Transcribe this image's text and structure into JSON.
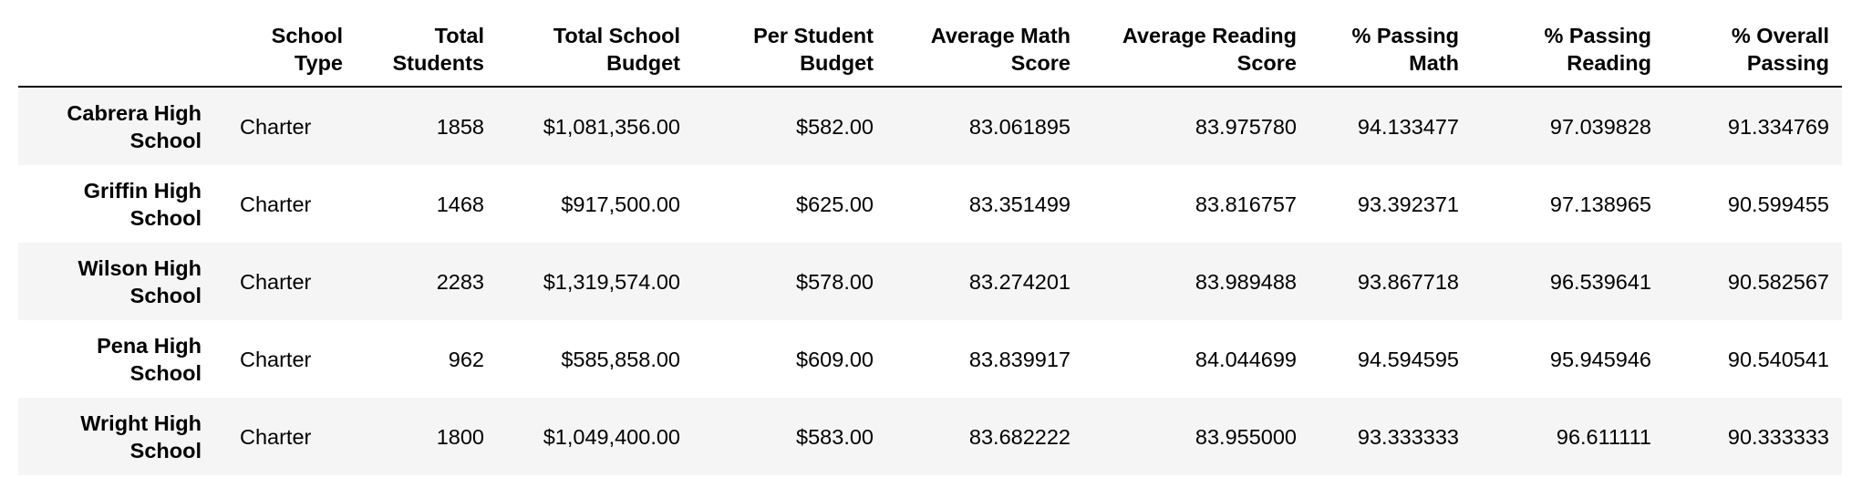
{
  "columns": [
    "",
    "School Type",
    "Total Students",
    "Total School Budget",
    "Per Student Budget",
    "Average Math Score",
    "Average Reading Score",
    "% Passing Math",
    "% Passing Reading",
    "% Overall Passing"
  ],
  "header_lines": [
    [
      "",
      ""
    ],
    [
      "School",
      "Type"
    ],
    [
      "Total",
      "Students"
    ],
    [
      "Total School",
      "Budget"
    ],
    [
      "Per Student",
      "Budget"
    ],
    [
      "Average Math",
      "Score"
    ],
    [
      "Average Reading",
      "Score"
    ],
    [
      "% Passing",
      "Math"
    ],
    [
      "% Passing",
      "Reading"
    ],
    [
      "% Overall",
      "Passing"
    ]
  ],
  "rows": [
    {
      "name_lines": [
        "Cabrera High",
        "School"
      ],
      "school_type": "Charter",
      "total_students": "1858",
      "total_budget": "$1,081,356.00",
      "per_student_budget": "$582.00",
      "avg_math": "83.061895",
      "avg_reading": "83.975780",
      "pct_math": "94.133477",
      "pct_reading": "97.039828",
      "pct_overall": "91.334769"
    },
    {
      "name_lines": [
        "Griffin High",
        "School"
      ],
      "school_type": "Charter",
      "total_students": "1468",
      "total_budget": "$917,500.00",
      "per_student_budget": "$625.00",
      "avg_math": "83.351499",
      "avg_reading": "83.816757",
      "pct_math": "93.392371",
      "pct_reading": "97.138965",
      "pct_overall": "90.599455"
    },
    {
      "name_lines": [
        "Wilson High",
        "School"
      ],
      "school_type": "Charter",
      "total_students": "2283",
      "total_budget": "$1,319,574.00",
      "per_student_budget": "$578.00",
      "avg_math": "83.274201",
      "avg_reading": "83.989488",
      "pct_math": "93.867718",
      "pct_reading": "96.539641",
      "pct_overall": "90.582567"
    },
    {
      "name_lines": [
        "Pena High",
        "School"
      ],
      "school_type": "Charter",
      "total_students": "962",
      "total_budget": "$585,858.00",
      "per_student_budget": "$609.00",
      "avg_math": "83.839917",
      "avg_reading": "84.044699",
      "pct_math": "94.594595",
      "pct_reading": "95.945946",
      "pct_overall": "90.540541"
    },
    {
      "name_lines": [
        "Wright High",
        "School"
      ],
      "school_type": "Charter",
      "total_students": "1800",
      "total_budget": "$1,049,400.00",
      "per_student_budget": "$583.00",
      "avg_math": "83.682222",
      "avg_reading": "83.955000",
      "pct_math": "93.333333",
      "pct_reading": "96.611111",
      "pct_overall": "90.333333"
    }
  ]
}
